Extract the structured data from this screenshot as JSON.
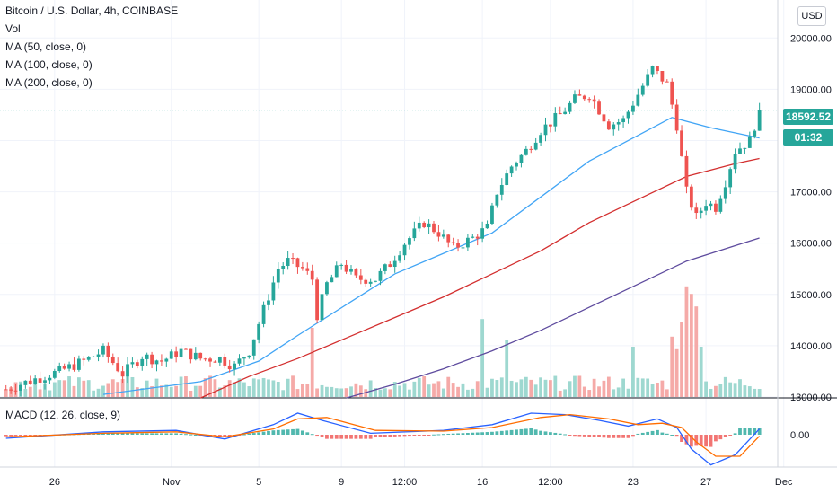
{
  "header": {
    "symbol": "Bitcoin / U.S. Dollar, 4h, COINBASE",
    "indicators": [
      "Vol",
      "MA (50, close, 0)",
      "MA (100, close, 0)",
      "MA (200, close, 0)"
    ],
    "currency": "USD"
  },
  "price_tags": {
    "last_price": "18592.52",
    "countdown": "01:32"
  },
  "macd_label": "MACD (12, 26, close, 9)",
  "colors": {
    "up": "#26a69a",
    "down": "#ef5350",
    "ma50": "#42a5f5",
    "ma100": "#d32f2f",
    "ma200": "#5e4b9e",
    "macd_line": "#2962ff",
    "signal_line": "#ff6d00",
    "vol_up": "#9ed8d0",
    "vol_down": "#f5aaa8"
  },
  "chart_data": {
    "type": "candlestick",
    "price_ylim": [
      13000,
      20600
    ],
    "price_ticks": [
      "20000.00",
      "19000.00",
      "18000.00",
      "17000.00",
      "16000.00",
      "15000.00",
      "14000.00",
      "13000.00"
    ],
    "price_tick_values": [
      20000,
      19000,
      18000,
      17000,
      16000,
      15000,
      14000,
      13000
    ],
    "macd_tick": "0.00",
    "x_ticks": [
      "26",
      "Nov",
      "5",
      "9",
      "12:00",
      "16",
      "12:00",
      "23",
      "27",
      "Dec"
    ],
    "x_tick_bars": [
      10,
      34,
      52,
      69,
      82,
      98,
      112,
      129,
      144,
      160
    ],
    "bar_count": 156,
    "last_price": 18592.52,
    "price_path": [
      [
        0,
        13150
      ],
      [
        6,
        13350
      ],
      [
        11,
        13500
      ],
      [
        16,
        13700
      ],
      [
        20,
        13900
      ],
      [
        24,
        13450
      ],
      [
        28,
        13800
      ],
      [
        32,
        13700
      ],
      [
        36,
        13900
      ],
      [
        40,
        13750
      ],
      [
        44,
        13750
      ],
      [
        47,
        13600
      ],
      [
        50,
        13900
      ],
      [
        53,
        14700
      ],
      [
        56,
        15500
      ],
      [
        58,
        15650
      ],
      [
        61,
        15500
      ],
      [
        63,
        15300
      ],
      [
        64,
        14600
      ],
      [
        66,
        15200
      ],
      [
        69,
        15600
      ],
      [
        72,
        15300
      ],
      [
        76,
        15300
      ],
      [
        79,
        15600
      ],
      [
        82,
        16000
      ],
      [
        86,
        16400
      ],
      [
        89,
        16200
      ],
      [
        92,
        15900
      ],
      [
        96,
        16100
      ],
      [
        99,
        16300
      ],
      [
        101,
        17000
      ],
      [
        104,
        17500
      ],
      [
        107,
        17800
      ],
      [
        110,
        18200
      ],
      [
        114,
        18500
      ],
      [
        117,
        18800
      ],
      [
        120,
        18900
      ],
      [
        124,
        18300
      ],
      [
        127,
        18400
      ],
      [
        130,
        18900
      ],
      [
        133,
        19400
      ],
      [
        136,
        19100
      ],
      [
        138,
        18300
      ],
      [
        140,
        17000
      ],
      [
        142,
        16500
      ],
      [
        144,
        16800
      ],
      [
        146,
        16700
      ],
      [
        148,
        17200
      ],
      [
        150,
        17800
      ],
      [
        153,
        18000
      ],
      [
        155,
        18592.52
      ]
    ],
    "series": [
      {
        "name": "MA (50, close, 0)",
        "path": [
          [
            20,
            13050
          ],
          [
            40,
            13300
          ],
          [
            52,
            13700
          ],
          [
            60,
            14200
          ],
          [
            70,
            14800
          ],
          [
            80,
            15400
          ],
          [
            90,
            15800
          ],
          [
            100,
            16200
          ],
          [
            110,
            16900
          ],
          [
            120,
            17600
          ],
          [
            130,
            18100
          ],
          [
            137,
            18450
          ],
          [
            145,
            18250
          ],
          [
            155,
            18050
          ]
        ]
      },
      {
        "name": "MA (100, close, 0)",
        "path": [
          [
            40,
            12980
          ],
          [
            50,
            13400
          ],
          [
            60,
            13750
          ],
          [
            70,
            14150
          ],
          [
            80,
            14550
          ],
          [
            90,
            14950
          ],
          [
            100,
            15400
          ],
          [
            110,
            15850
          ],
          [
            120,
            16400
          ],
          [
            130,
            16850
          ],
          [
            140,
            17300
          ],
          [
            150,
            17550
          ],
          [
            155,
            17650
          ]
        ]
      },
      {
        "name": "MA (200, close, 0)",
        "path": [
          [
            70,
            12980
          ],
          [
            80,
            13250
          ],
          [
            90,
            13550
          ],
          [
            100,
            13900
          ],
          [
            110,
            14300
          ],
          [
            120,
            14750
          ],
          [
            130,
            15200
          ],
          [
            140,
            15650
          ],
          [
            150,
            15950
          ],
          [
            155,
            16100
          ]
        ]
      }
    ],
    "volume_peaks": [
      [
        63,
        0.55
      ],
      [
        98,
        0.62
      ],
      [
        103,
        0.45
      ],
      [
        129,
        0.4
      ],
      [
        137,
        0.48
      ],
      [
        138,
        0.38
      ],
      [
        139,
        0.6
      ],
      [
        140,
        0.88
      ],
      [
        141,
        0.82
      ],
      [
        142,
        0.72
      ],
      [
        143,
        0.4
      ]
    ],
    "macd_path": [
      [
        0,
        -5
      ],
      [
        20,
        4
      ],
      [
        35,
        6
      ],
      [
        45,
        -6
      ],
      [
        55,
        14
      ],
      [
        60,
        30
      ],
      [
        65,
        20
      ],
      [
        75,
        2
      ],
      [
        90,
        6
      ],
      [
        100,
        14
      ],
      [
        108,
        30
      ],
      [
        115,
        28
      ],
      [
        122,
        20
      ],
      [
        128,
        12
      ],
      [
        134,
        22
      ],
      [
        138,
        10
      ],
      [
        141,
        -20
      ],
      [
        145,
        -42
      ],
      [
        150,
        -28
      ],
      [
        155,
        8
      ]
    ],
    "signal_path": [
      [
        0,
        -3
      ],
      [
        20,
        2
      ],
      [
        35,
        4
      ],
      [
        45,
        -3
      ],
      [
        55,
        8
      ],
      [
        60,
        22
      ],
      [
        66,
        24
      ],
      [
        76,
        6
      ],
      [
        90,
        5
      ],
      [
        100,
        10
      ],
      [
        110,
        24
      ],
      [
        116,
        28
      ],
      [
        124,
        22
      ],
      [
        130,
        14
      ],
      [
        135,
        16
      ],
      [
        139,
        10
      ],
      [
        142,
        -10
      ],
      [
        146,
        -30
      ],
      [
        151,
        -30
      ],
      [
        155,
        -2
      ]
    ]
  }
}
